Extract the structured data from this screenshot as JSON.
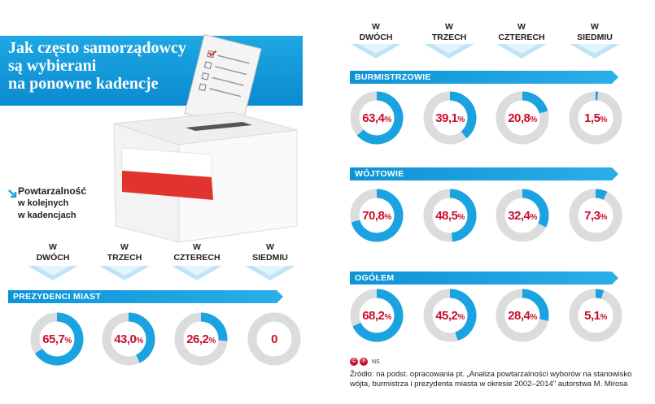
{
  "title": {
    "line1": "Jak często samorządowcy",
    "line2": "są wybierani",
    "line3": "na ponowne kadencje"
  },
  "note": {
    "line1": "Powtarzalność",
    "line2": "w kolejnych",
    "line3": "w kadencjach"
  },
  "columns": [
    {
      "top": "W",
      "bottom": "DWÓCH"
    },
    {
      "top": "W",
      "bottom": "TRZECH"
    },
    {
      "top": "W",
      "bottom": "CZTERECH"
    },
    {
      "top": "W",
      "bottom": "SIEDMIU"
    }
  ],
  "colors": {
    "accent": "#1aa3e0",
    "track": "#dcdcdc",
    "value_text": "#c8102e",
    "flag_red": "#e2342f"
  },
  "chart_data": [
    {
      "type": "pie",
      "title": "PREZYDENCI MIAST",
      "categories": [
        "W DWÓCH",
        "W TRZECH",
        "W CZTERECH",
        "W SIEDMIU"
      ],
      "values": [
        65.7,
        43.0,
        26.2,
        0
      ],
      "labels": [
        "65,7",
        "43,0",
        "26,2",
        "0"
      ]
    },
    {
      "type": "pie",
      "title": "BURMISTRZOWIE",
      "categories": [
        "W DWÓCH",
        "W TRZECH",
        "W CZTERECH",
        "W SIEDMIU"
      ],
      "values": [
        63.4,
        39.1,
        20.8,
        1.5
      ],
      "labels": [
        "63,4",
        "39,1",
        "20,8",
        "1,5"
      ]
    },
    {
      "type": "pie",
      "title": "WÓJTOWIE",
      "categories": [
        "W DWÓCH",
        "W TRZECH",
        "W CZTERECH",
        "W SIEDMIU"
      ],
      "values": [
        70.8,
        48.5,
        32.4,
        7.3
      ],
      "labels": [
        "70,8",
        "48,5",
        "32,4",
        "7,3"
      ]
    },
    {
      "type": "pie",
      "title": "OGÓŁEM",
      "categories": [
        "W DWÓCH",
        "W TRZECH",
        "W CZTERECH",
        "W SIEDMIU"
      ],
      "values": [
        68.2,
        45.2,
        28.4,
        5.1
      ],
      "labels": [
        "68,2",
        "45,2",
        "28,4",
        "5,1"
      ]
    }
  ],
  "percent_sign": "%",
  "source": {
    "icons": [
      "©",
      "℗"
    ],
    "agency": "NS",
    "text": "Źródło: na podst. opracowania pt. „Analiza powtarzalności wyborów na stanowisko wójta, burmistrza i prezydenta miasta w okresie 2002–2014\" autorstwa M. Mirosa"
  }
}
